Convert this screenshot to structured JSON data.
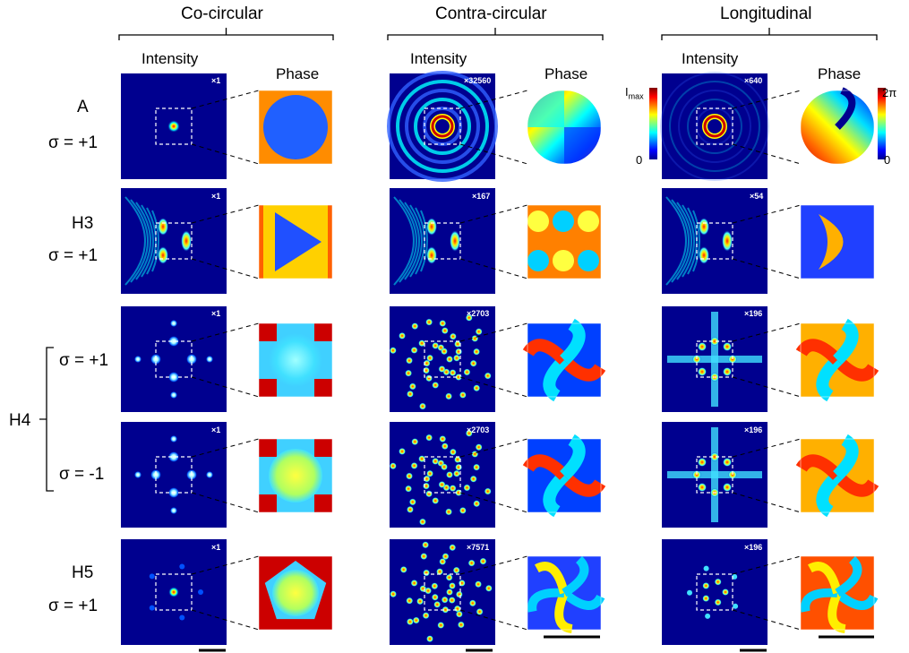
{
  "columns": [
    {
      "title": "Co-circular",
      "intensity_label": "Intensity",
      "phase_label": "Phase"
    },
    {
      "title": "Contra-circular",
      "intensity_label": "Intensity",
      "phase_label": "Phase"
    },
    {
      "title": "Longitudinal",
      "intensity_label": "Intensity",
      "phase_label": "Phase"
    }
  ],
  "rows": [
    {
      "name": "A",
      "sigma": "σ = +1",
      "multipliers": [
        "×1",
        "×32560",
        "×640"
      ]
    },
    {
      "name": "H3",
      "sigma": "σ = +1",
      "multipliers": [
        "×1",
        "×167",
        "×54"
      ]
    },
    {
      "name": "",
      "sigma": "σ = +1",
      "multipliers": [
        "×1",
        "×2703",
        "×196"
      ]
    },
    {
      "name": "",
      "sigma": "σ = -1",
      "multipliers": [
        "×1",
        "×2703",
        "×196"
      ]
    },
    {
      "name": "H5",
      "sigma": "σ = +1",
      "multipliers": [
        "×1",
        "×7571",
        "×196"
      ]
    }
  ],
  "group_label": "H4",
  "intensity_colorbar": {
    "max_label": "I",
    "max_sub": "max",
    "min_label": "0"
  },
  "phase_colorbar": {
    "max_label": "2π",
    "min_label": "0"
  },
  "colors": {
    "deep_blue": "#00008f",
    "cyan": "#00ffff",
    "yellow": "#ffff00",
    "red": "#cc0000",
    "orange": "#ff8c00"
  }
}
